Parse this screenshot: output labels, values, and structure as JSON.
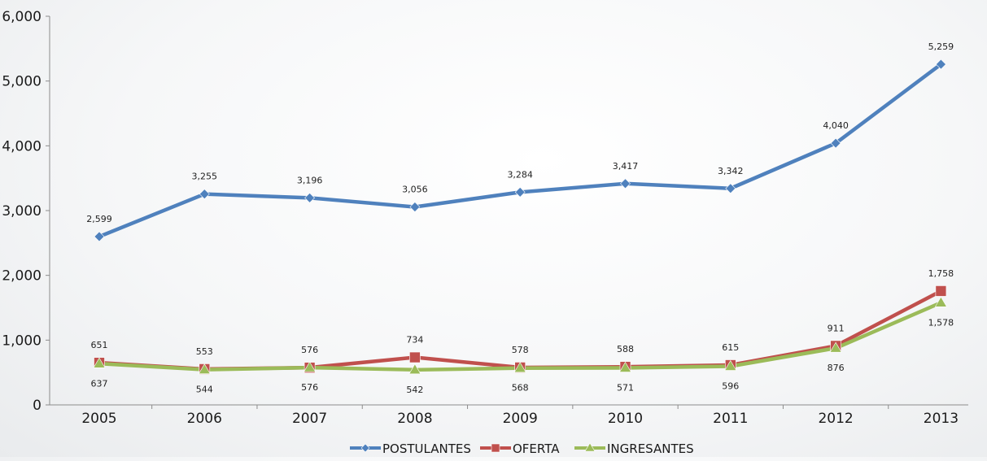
{
  "chart_data": {
    "type": "line",
    "title": "",
    "xlabel": "",
    "ylabel": "",
    "x": [
      "2005",
      "2006",
      "2007",
      "2008",
      "2009",
      "2010",
      "2011",
      "2012",
      "2013"
    ],
    "ylim": [
      0,
      6000
    ],
    "y_ticks": [
      0,
      1000,
      2000,
      3000,
      4000,
      5000,
      6000
    ],
    "y_tick_labels": [
      "0",
      "1,000",
      "2,000",
      "3,000",
      "4,000",
      "5,000",
      "6,000"
    ],
    "grid": false,
    "legend_position": "bottom-center",
    "series": [
      {
        "name": "POSTULANTES",
        "color": "#4f81bd",
        "marker": "diamond",
        "values": [
          2599,
          3255,
          3196,
          3056,
          3284,
          3417,
          3342,
          4040,
          5259
        ],
        "labels": [
          "2,599",
          "3,255",
          "3,196",
          "3,056",
          "3,284",
          "3,417",
          "3,342",
          "4,040",
          "5,259"
        ],
        "label_position": "above"
      },
      {
        "name": "OFERTA",
        "color": "#c0504d",
        "marker": "square",
        "values": [
          651,
          553,
          576,
          734,
          578,
          588,
          615,
          911,
          1758
        ],
        "labels": [
          "651",
          "553",
          "576",
          "734",
          "578",
          "588",
          "615",
          "911",
          "1,758"
        ],
        "label_position": "above"
      },
      {
        "name": "INGRESANTES",
        "color": "#9bbb59",
        "marker": "triangle",
        "values": [
          637,
          544,
          576,
          542,
          568,
          571,
          596,
          876,
          1578
        ],
        "labels": [
          "637",
          "544",
          "576",
          "542",
          "568",
          "571",
          "596",
          "876",
          "1,578"
        ],
        "label_position": "below"
      }
    ]
  }
}
